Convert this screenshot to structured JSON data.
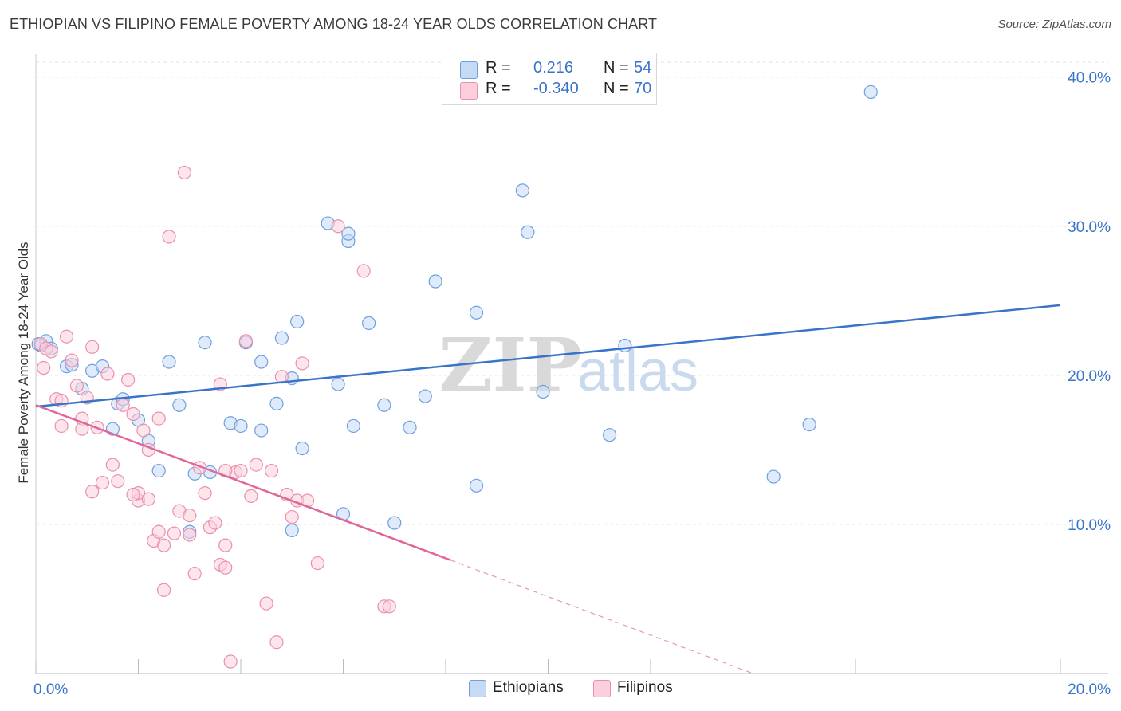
{
  "title": "ETHIOPIAN VS FILIPINO FEMALE POVERTY AMONG 18-24 YEAR OLDS CORRELATION CHART",
  "source": "Source: ZipAtlas.com",
  "watermark": {
    "zip": "ZIP",
    "atlas": "atlas"
  },
  "legend": {
    "rows": [
      {
        "r_label": "R =",
        "r_value": "0.216",
        "n_label": "N =",
        "n_value": "54",
        "color": "#a8c8f0"
      },
      {
        "r_label": "R =",
        "r_value": "-0.340",
        "n_label": "N =",
        "n_value": "70",
        "color": "#f5b8ca"
      }
    ],
    "bottom": [
      {
        "label": "Ethiopians",
        "color": "#a8c8f0"
      },
      {
        "label": "Filipinos",
        "color": "#f5b8ca"
      }
    ]
  },
  "chart_data": {
    "type": "scatter",
    "ylabel": "Female Poverty Among 18-24 Year Olds",
    "xlim": [
      0,
      20
    ],
    "ylim": [
      0,
      41
    ],
    "x_tick_labels": [
      "0.0%",
      "20.0%"
    ],
    "y_ticks": [
      10,
      20,
      30,
      40
    ],
    "y_tick_labels": [
      "10.0%",
      "20.0%",
      "30.0%",
      "40.0%"
    ],
    "grid": true,
    "legend_position": "top-center",
    "colors": {
      "ethiopians": "#3a74c9",
      "filipinos": "#e0679a"
    },
    "series": [
      {
        "name": "Ethiopians",
        "points": [
          [
            0.1,
            22.0
          ],
          [
            0.2,
            22.3
          ],
          [
            0.3,
            21.8
          ],
          [
            0.6,
            20.6
          ],
          [
            0.7,
            20.7
          ],
          [
            0.9,
            19.1
          ],
          [
            1.1,
            20.3
          ],
          [
            1.3,
            20.6
          ],
          [
            1.6,
            18.1
          ],
          [
            1.7,
            18.4
          ],
          [
            1.5,
            16.4
          ],
          [
            2.0,
            17.0
          ],
          [
            2.2,
            15.6
          ],
          [
            2.4,
            13.6
          ],
          [
            2.6,
            20.9
          ],
          [
            2.8,
            18.0
          ],
          [
            3.0,
            9.5
          ],
          [
            3.1,
            13.4
          ],
          [
            3.3,
            22.2
          ],
          [
            3.4,
            13.5
          ],
          [
            3.8,
            16.8
          ],
          [
            4.0,
            16.6
          ],
          [
            4.1,
            22.2
          ],
          [
            4.4,
            16.3
          ],
          [
            4.4,
            20.9
          ],
          [
            4.7,
            18.1
          ],
          [
            4.8,
            22.5
          ],
          [
            5.0,
            19.8
          ],
          [
            5.0,
            9.6
          ],
          [
            5.1,
            23.6
          ],
          [
            5.2,
            15.1
          ],
          [
            5.7,
            30.2
          ],
          [
            5.9,
            19.4
          ],
          [
            6.0,
            10.7
          ],
          [
            6.1,
            29.0
          ],
          [
            6.1,
            29.5
          ],
          [
            6.2,
            16.6
          ],
          [
            6.5,
            23.5
          ],
          [
            6.8,
            18.0
          ],
          [
            7.0,
            10.1
          ],
          [
            7.3,
            16.5
          ],
          [
            7.6,
            18.6
          ],
          [
            7.8,
            26.3
          ],
          [
            8.6,
            24.2
          ],
          [
            8.6,
            12.6
          ],
          [
            9.5,
            32.4
          ],
          [
            9.6,
            29.6
          ],
          [
            9.9,
            18.9
          ],
          [
            11.2,
            16.0
          ],
          [
            11.5,
            22.0
          ],
          [
            14.4,
            13.2
          ],
          [
            15.1,
            16.7
          ],
          [
            16.3,
            39.0
          ],
          [
            0.05,
            22.1
          ]
        ]
      },
      {
        "name": "Filipinos",
        "points": [
          [
            0.1,
            22.1
          ],
          [
            0.15,
            20.5
          ],
          [
            0.2,
            21.8
          ],
          [
            0.3,
            21.6
          ],
          [
            0.4,
            18.4
          ],
          [
            0.5,
            16.6
          ],
          [
            0.6,
            22.6
          ],
          [
            0.7,
            21.0
          ],
          [
            0.8,
            19.3
          ],
          [
            0.9,
            17.1
          ],
          [
            1.0,
            18.5
          ],
          [
            1.1,
            21.9
          ],
          [
            1.2,
            16.5
          ],
          [
            1.3,
            12.8
          ],
          [
            1.4,
            20.1
          ],
          [
            1.5,
            14.0
          ],
          [
            1.6,
            12.9
          ],
          [
            1.7,
            18.0
          ],
          [
            1.8,
            19.7
          ],
          [
            1.9,
            17.4
          ],
          [
            2.0,
            11.6
          ],
          [
            2.0,
            12.1
          ],
          [
            2.1,
            16.3
          ],
          [
            2.2,
            15.0
          ],
          [
            2.2,
            11.7
          ],
          [
            2.3,
            8.9
          ],
          [
            2.4,
            17.1
          ],
          [
            2.5,
            8.6
          ],
          [
            2.5,
            5.6
          ],
          [
            2.6,
            29.3
          ],
          [
            2.7,
            9.4
          ],
          [
            2.8,
            10.9
          ],
          [
            2.9,
            33.6
          ],
          [
            3.0,
            10.6
          ],
          [
            3.0,
            9.3
          ],
          [
            3.1,
            6.7
          ],
          [
            3.2,
            13.8
          ],
          [
            3.3,
            12.1
          ],
          [
            3.4,
            9.8
          ],
          [
            3.5,
            10.1
          ],
          [
            3.6,
            7.3
          ],
          [
            3.6,
            19.4
          ],
          [
            3.7,
            8.6
          ],
          [
            3.7,
            7.1
          ],
          [
            3.8,
            0.8
          ],
          [
            3.9,
            13.5
          ],
          [
            4.0,
            13.6
          ],
          [
            4.1,
            22.3
          ],
          [
            4.2,
            11.9
          ],
          [
            4.3,
            14.0
          ],
          [
            4.5,
            4.7
          ],
          [
            4.6,
            13.6
          ],
          [
            4.7,
            2.1
          ],
          [
            4.8,
            19.9
          ],
          [
            4.9,
            12.0
          ],
          [
            5.0,
            10.5
          ],
          [
            5.1,
            11.6
          ],
          [
            5.2,
            20.8
          ],
          [
            5.3,
            11.6
          ],
          [
            5.5,
            7.4
          ],
          [
            5.9,
            30.0
          ],
          [
            6.4,
            27.0
          ],
          [
            6.8,
            4.5
          ],
          [
            6.9,
            4.5
          ],
          [
            0.5,
            18.3
          ],
          [
            1.9,
            12.0
          ],
          [
            0.9,
            16.4
          ],
          [
            3.7,
            13.6
          ],
          [
            2.4,
            9.5
          ],
          [
            1.1,
            12.2
          ]
        ]
      }
    ],
    "trend_lines": [
      {
        "series": "Ethiopians",
        "x": [
          0,
          20
        ],
        "y": [
          17.9,
          24.7
        ]
      },
      {
        "series": "Filipinos",
        "x": [
          0,
          8.1
        ],
        "y": [
          18.0,
          7.6
        ],
        "dashed_to": [
          14.0,
          0
        ]
      }
    ]
  }
}
